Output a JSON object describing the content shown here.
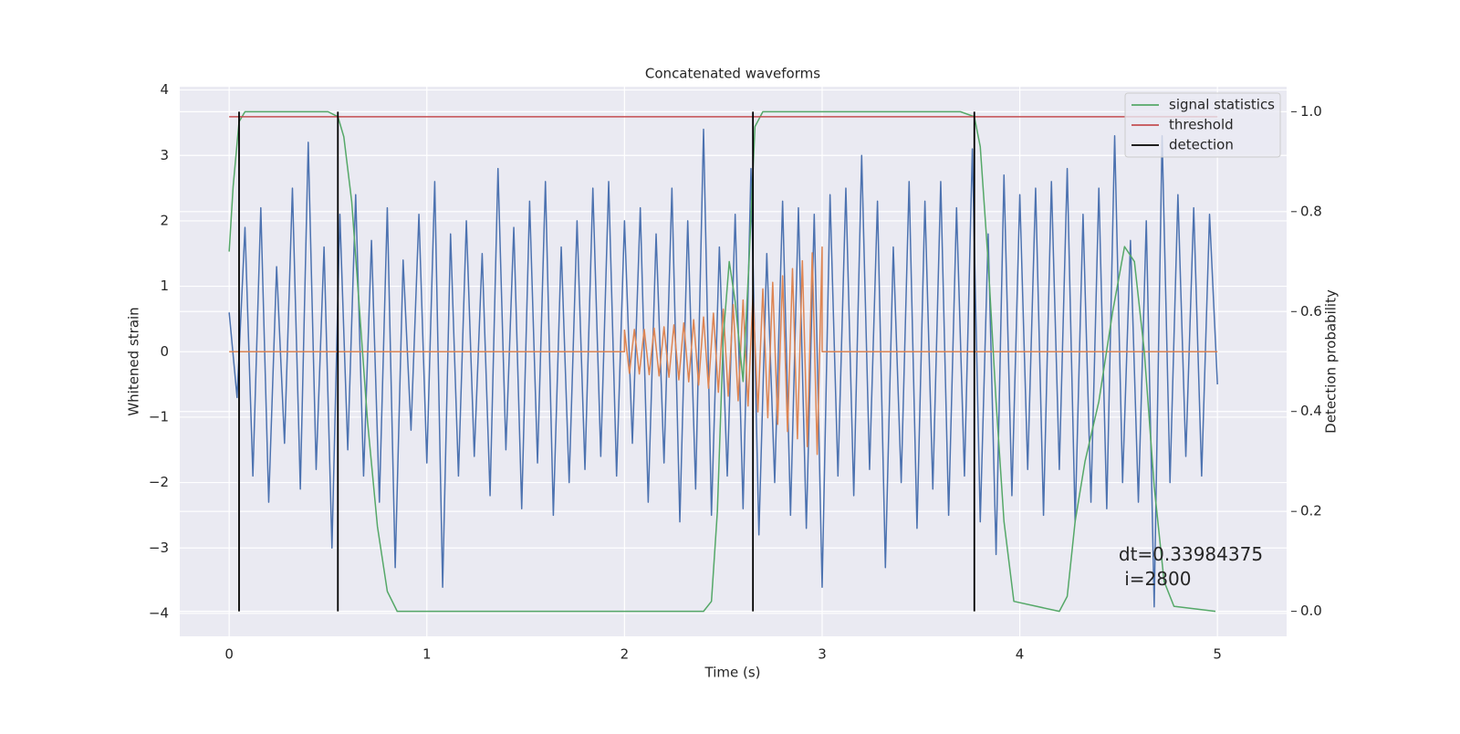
{
  "chart_data": {
    "type": "line",
    "title": "Concatenated waveforms",
    "xlabel": "Time (s)",
    "ylabel": "Whitened strain",
    "y2label": "Detection probability",
    "xlim": [
      -0.25,
      5.35
    ],
    "ylim": [
      -4.35,
      4.05
    ],
    "y2lim": [
      -0.05,
      1.05
    ],
    "xticks": [
      0,
      1,
      2,
      3,
      4,
      5
    ],
    "yticks": [
      {
        "value": -4,
        "label": "−4"
      },
      {
        "value": -3,
        "label": "−3"
      },
      {
        "value": -2,
        "label": "−2"
      },
      {
        "value": -1,
        "label": "−1"
      },
      0,
      1,
      2,
      3,
      4
    ],
    "y2ticks": [
      {
        "value": 0,
        "label": "0.0"
      },
      0.2,
      0.4,
      0.6,
      0.8,
      {
        "value": 1,
        "label": "1.0"
      }
    ],
    "grid": true,
    "legend_position": "upper right",
    "annotation": [
      "dt=0.33984375",
      " i=2800"
    ],
    "annotation_x": 4.5,
    "annotation_y": -3.3,
    "series": [
      {
        "type": "line",
        "color": "#4c72b0",
        "x": [
          0,
          0.04,
          0.08,
          0.12,
          0.16,
          0.2,
          0.24,
          0.28,
          0.32,
          0.36,
          0.4,
          0.44,
          0.48,
          0.52,
          0.56,
          0.6,
          0.64,
          0.68,
          0.72,
          0.76,
          0.8,
          0.84,
          0.88,
          0.92,
          0.96,
          1,
          1.04,
          1.08,
          1.12,
          1.16,
          1.2,
          1.24,
          1.28,
          1.32,
          1.36,
          1.4,
          1.44,
          1.48,
          1.52,
          1.56,
          1.6,
          1.64,
          1.68,
          1.72,
          1.76,
          1.8,
          1.84,
          1.88,
          1.92,
          1.96,
          2,
          2.04,
          2.08,
          2.12,
          2.16,
          2.2,
          2.24,
          2.28,
          2.32,
          2.36,
          2.4,
          2.44,
          2.48,
          2.52,
          2.56,
          2.6,
          2.64,
          2.68,
          2.72,
          2.76,
          2.8,
          2.84,
          2.88,
          2.92,
          2.96,
          3,
          3.04,
          3.08,
          3.12,
          3.16,
          3.2,
          3.24,
          3.28,
          3.32,
          3.36,
          3.4,
          3.44,
          3.48,
          3.52,
          3.56,
          3.6,
          3.64,
          3.68,
          3.72,
          3.76,
          3.8,
          3.84,
          3.88,
          3.92,
          3.96,
          4,
          4.04,
          4.08,
          4.12,
          4.16,
          4.2,
          4.24,
          4.28,
          4.32,
          4.36,
          4.4,
          4.44,
          4.48,
          4.52,
          4.56,
          4.6,
          4.64,
          4.68,
          4.72,
          4.76,
          4.8,
          4.84,
          4.88,
          4.92,
          4.96,
          5
        ],
        "values": [
          0.6,
          -0.7,
          1.9,
          -1.9,
          2.2,
          -2.3,
          1.3,
          -1.4,
          2.5,
          -2.1,
          3.2,
          -1.8,
          1.6,
          -3.0,
          2.1,
          -1.5,
          2.4,
          -1.9,
          1.7,
          -2.3,
          2.2,
          -3.3,
          1.4,
          -1.2,
          2.1,
          -1.7,
          2.6,
          -3.6,
          1.8,
          -1.9,
          2.0,
          -1.6,
          1.5,
          -2.2,
          2.8,
          -1.5,
          1.9,
          -2.4,
          2.3,
          -1.7,
          2.6,
          -2.5,
          1.6,
          -2.0,
          2.0,
          -1.8,
          2.5,
          -1.6,
          2.6,
          -1.9,
          2.0,
          -1.4,
          2.2,
          -2.3,
          1.8,
          -1.7,
          2.5,
          -2.6,
          2.0,
          -2.1,
          3.4,
          -2.5,
          1.6,
          -1.9,
          2.1,
          -2.4,
          2.8,
          -2.8,
          1.5,
          -2.0,
          2.3,
          -2.5,
          2.2,
          -2.7,
          2.1,
          -3.6,
          2.4,
          -1.9,
          2.5,
          -2.2,
          3.0,
          -1.8,
          2.3,
          -3.3,
          1.6,
          -2.0,
          2.6,
          -2.7,
          2.3,
          -2.1,
          2.6,
          -2.5,
          2.2,
          -1.9,
          3.1,
          -2.6,
          1.8,
          -3.1,
          2.7,
          -2.2,
          2.4,
          -1.8,
          2.5,
          -2.5,
          2.6,
          -1.8,
          2.8,
          -2.6,
          2.1,
          -2.3,
          2.5,
          -2.4,
          3.3,
          -2.0,
          1.7,
          -2.3,
          2.0,
          -3.9,
          3.3,
          -2.0,
          2.4,
          -1.6,
          2.2,
          -1.9,
          2.1,
          -0.5
        ]
      },
      {
        "type": "line",
        "color": "#dd8452",
        "x": [
          0,
          2,
          2,
          2.025,
          2.05,
          2.075,
          2.1,
          2.125,
          2.15,
          2.175,
          2.2,
          2.225,
          2.25,
          2.275,
          2.3,
          2.325,
          2.35,
          2.375,
          2.4,
          2.425,
          2.45,
          2.475,
          2.5,
          2.525,
          2.55,
          2.575,
          2.6,
          2.625,
          2.65,
          2.675,
          2.7,
          2.725,
          2.75,
          2.775,
          2.8,
          2.825,
          2.85,
          2.875,
          2.9,
          2.925,
          2.95,
          2.975,
          3,
          3,
          5
        ],
        "values": [
          0,
          0,
          0.33,
          -0.33,
          0.34,
          -0.34,
          0.34,
          -0.35,
          0.36,
          -0.37,
          0.38,
          -0.39,
          0.41,
          -0.43,
          0.44,
          -0.46,
          0.49,
          -0.51,
          0.53,
          -0.56,
          0.59,
          -0.62,
          0.65,
          -0.68,
          0.72,
          -0.75,
          0.79,
          -0.83,
          0.87,
          -0.92,
          0.96,
          -1.01,
          1.06,
          -1.11,
          1.16,
          -1.22,
          1.27,
          -1.33,
          1.39,
          -1.45,
          1.51,
          -1.57,
          1.6,
          0,
          0
        ]
      },
      {
        "type": "line",
        "name": "signal statistics",
        "color": "#55a868",
        "axis": "y2",
        "x": [
          0,
          0.02,
          0.05,
          0.08,
          0.12,
          0.3,
          0.5,
          0.55,
          0.58,
          0.62,
          0.66,
          0.7,
          0.75,
          0.8,
          0.85,
          1.2,
          2.4,
          2.44,
          2.47,
          2.5,
          2.53,
          2.56,
          2.6,
          2.63,
          2.66,
          2.7,
          3.0,
          3.7,
          3.77,
          3.8,
          3.84,
          3.88,
          3.92,
          3.97,
          4.2,
          4.24,
          4.28,
          4.33,
          4.4,
          4.47,
          4.53,
          4.58,
          4.63,
          4.68,
          4.73,
          4.78,
          4.99
        ],
        "values": [
          0.72,
          0.85,
          0.98,
          1.0,
          1.0,
          1.0,
          1.0,
          0.99,
          0.95,
          0.82,
          0.6,
          0.38,
          0.17,
          0.04,
          0.0,
          0.0,
          0.0,
          0.02,
          0.2,
          0.55,
          0.7,
          0.62,
          0.46,
          0.7,
          0.97,
          1.0,
          1.0,
          1.0,
          0.99,
          0.93,
          0.7,
          0.42,
          0.18,
          0.02,
          0.0,
          0.03,
          0.18,
          0.3,
          0.42,
          0.6,
          0.73,
          0.7,
          0.52,
          0.25,
          0.06,
          0.01,
          0.0
        ]
      },
      {
        "type": "line",
        "name": "threshold",
        "color": "#c44e52",
        "axis": "y2",
        "x": [
          0,
          5
        ],
        "values": [
          0.99,
          0.99
        ]
      },
      {
        "type": "vline",
        "name": "detection",
        "color": "#000000",
        "axis": "y2",
        "x": [
          0.05,
          0.55,
          2.65,
          3.77
        ],
        "y_range": [
          0,
          1
        ]
      }
    ]
  }
}
